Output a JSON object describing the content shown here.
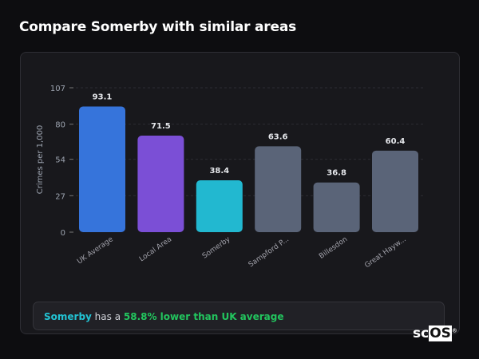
{
  "header": {
    "title": "Compare Somerby with similar areas"
  },
  "chart_data": {
    "type": "bar",
    "categories": [
      "UK Average",
      "Local Area",
      "Somerby",
      "Sampford P...",
      "Billesdon",
      "Great Hayw..."
    ],
    "values": [
      93.1,
      71.5,
      38.4,
      63.6,
      36.8,
      60.4
    ],
    "value_labels": [
      "93.1",
      "71.5",
      "38.4",
      "63.6",
      "36.8",
      "60.4"
    ],
    "colors": [
      "#3674db",
      "#7b4fd6",
      "#22b8d0",
      "#5a6478",
      "#5a6478",
      "#5a6478"
    ],
    "ylabel": "Crimes per 1,000",
    "yticks": [
      0,
      27,
      54,
      80,
      107
    ],
    "ylim": [
      0,
      107
    ],
    "grid": true
  },
  "summary": {
    "place": "Somerby",
    "middle": " has a ",
    "stat": "58.8% lower than UK average"
  },
  "logo": {
    "text_a": "sc",
    "text_b": "OS",
    "mark": "®"
  }
}
